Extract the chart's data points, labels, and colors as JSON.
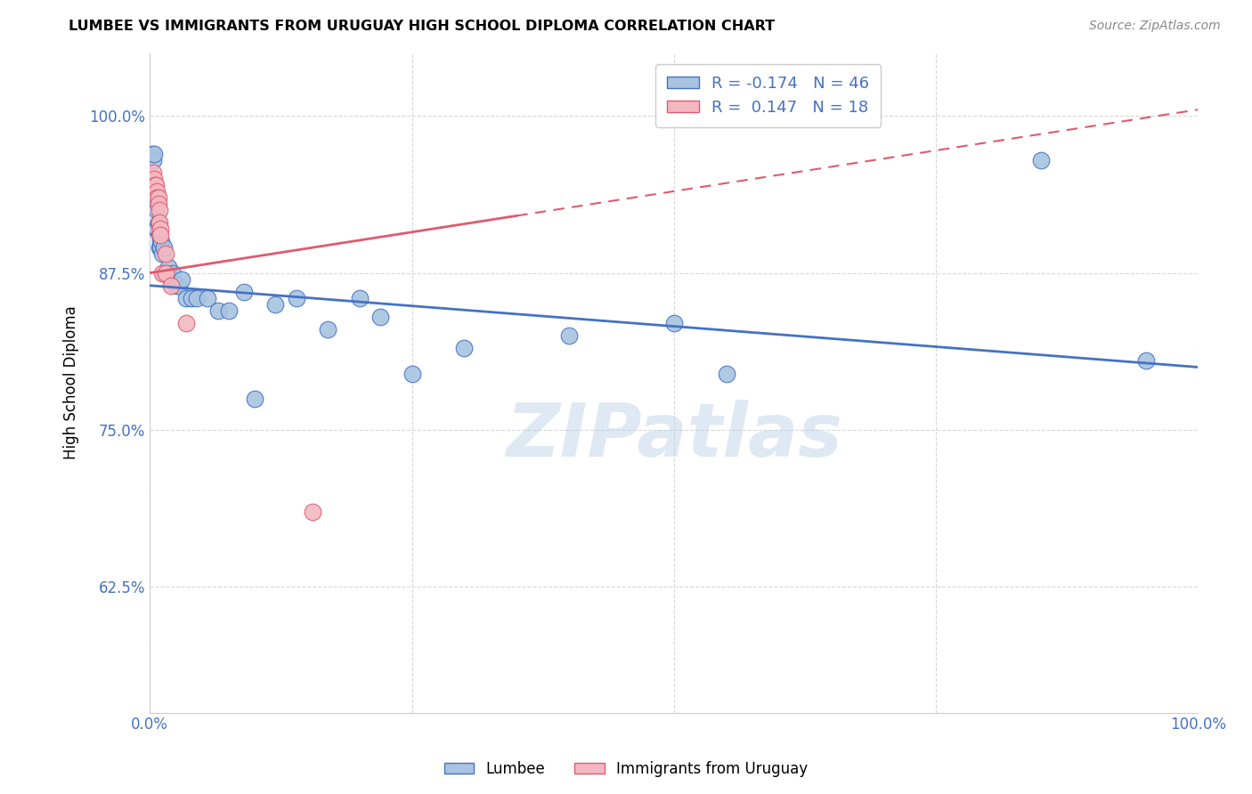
{
  "title": "LUMBEE VS IMMIGRANTS FROM URUGUAY HIGH SCHOOL DIPLOMA CORRELATION CHART",
  "source": "Source: ZipAtlas.com",
  "ylabel": "High School Diploma",
  "yticks": [
    "62.5%",
    "75.0%",
    "87.5%",
    "100.0%"
  ],
  "ytick_vals": [
    0.625,
    0.75,
    0.875,
    1.0
  ],
  "xlim": [
    0.0,
    1.0
  ],
  "ylim": [
    0.525,
    1.05
  ],
  "legend_lumbee": "Lumbee",
  "legend_uruguay": "Immigrants from Uruguay",
  "r_lumbee": -0.174,
  "n_lumbee": 46,
  "r_uruguay": 0.147,
  "n_uruguay": 18,
  "lumbee_color": "#a8c4e0",
  "uruguay_color": "#f4b8c1",
  "lumbee_line_color": "#4472c4",
  "uruguay_line_color": "#e05a6e",
  "lumbee_x": [
    0.002,
    0.003,
    0.004,
    0.005,
    0.006,
    0.006,
    0.007,
    0.007,
    0.008,
    0.009,
    0.009,
    0.01,
    0.01,
    0.011,
    0.012,
    0.013,
    0.014,
    0.015,
    0.016,
    0.017,
    0.018,
    0.02,
    0.022,
    0.025,
    0.028,
    0.03,
    0.035,
    0.04,
    0.045,
    0.055,
    0.065,
    0.075,
    0.09,
    0.1,
    0.12,
    0.14,
    0.17,
    0.2,
    0.22,
    0.25,
    0.3,
    0.4,
    0.5,
    0.55,
    0.85,
    0.95
  ],
  "lumbee_y": [
    0.97,
    0.965,
    0.97,
    0.94,
    0.93,
    0.91,
    0.925,
    0.91,
    0.915,
    0.905,
    0.895,
    0.9,
    0.895,
    0.9,
    0.89,
    0.895,
    0.875,
    0.875,
    0.875,
    0.875,
    0.88,
    0.87,
    0.875,
    0.865,
    0.865,
    0.87,
    0.855,
    0.855,
    0.855,
    0.855,
    0.845,
    0.845,
    0.86,
    0.775,
    0.85,
    0.855,
    0.83,
    0.855,
    0.84,
    0.795,
    0.815,
    0.825,
    0.835,
    0.795,
    0.965,
    0.805
  ],
  "uruguay_x": [
    0.003,
    0.004,
    0.005,
    0.006,
    0.007,
    0.007,
    0.008,
    0.008,
    0.009,
    0.009,
    0.01,
    0.01,
    0.012,
    0.015,
    0.015,
    0.02,
    0.035,
    0.155
  ],
  "uruguay_y": [
    0.955,
    0.95,
    0.945,
    0.945,
    0.94,
    0.935,
    0.935,
    0.93,
    0.925,
    0.915,
    0.91,
    0.905,
    0.875,
    0.89,
    0.875,
    0.865,
    0.835,
    0.685
  ],
  "watermark": "ZIPatlas",
  "background_color": "#ffffff",
  "grid_color": "#d8d8d8",
  "xtick_positions": [
    0.0,
    0.25,
    0.5,
    0.75,
    1.0
  ],
  "ytick_grid_positions": [
    0.625,
    0.75,
    0.875,
    1.0
  ]
}
